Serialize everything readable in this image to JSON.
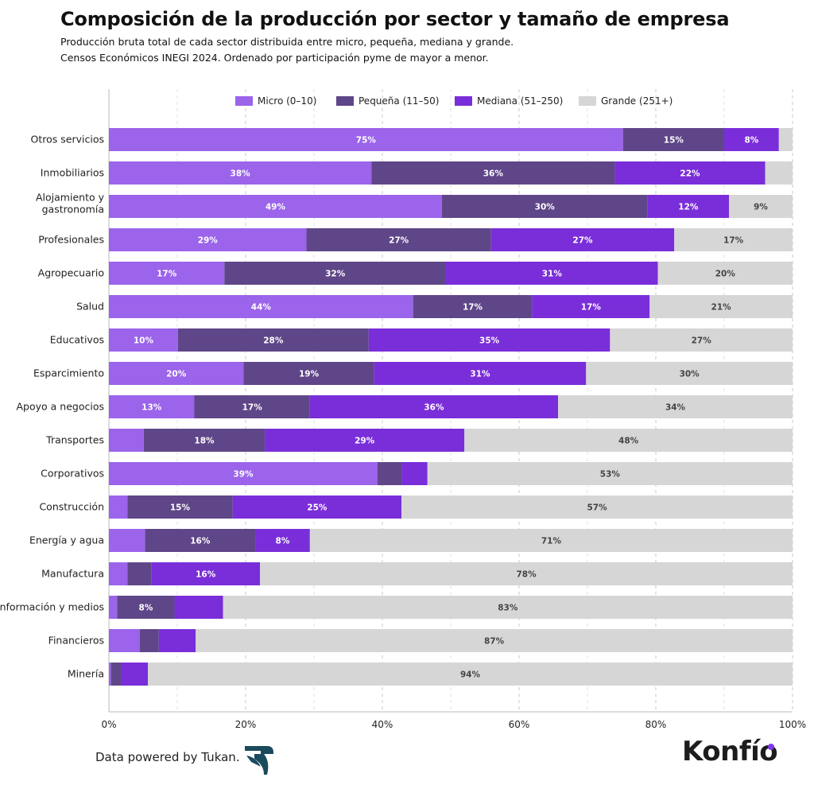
{
  "title": "Composición de la producción por sector y tamaño de empresa",
  "subtitle_line1": "Producción bruta total de cada sector distribuida entre micro, pequeña, mediana y grande.",
  "subtitle_line2": "Censos Económicos INEGI 2024. Ordenado por participación pyme de mayor a menor.",
  "footer": {
    "credit": "Data powered by Tukan.",
    "brand": "Konfío",
    "brand_dot_color": "#7c3aed",
    "tukan_logo_icon": "tukan-bird-logo-icon"
  },
  "colors": {
    "micro": "#9b64ea",
    "pequena": "#5f4688",
    "mediana": "#7a2ed9",
    "grande": "#d6d6d6",
    "label_light": "#ffffff",
    "label_dark": "#444444"
  },
  "chart_data": {
    "type": "bar",
    "orientation": "horizontal",
    "stacked": true,
    "x_ticks": [
      "0%",
      "20%",
      "40%",
      "60%",
      "80%",
      "100%"
    ],
    "xlim": [
      0,
      100
    ],
    "grid": true,
    "legend_position": "top",
    "categories": [
      "Otros servicios",
      "Inmobiliarios",
      "Alojamiento y gastronomía",
      "Profesionales",
      "Agropecuario",
      "Salud",
      "Educativos",
      "Esparcimiento",
      "Apoyo a negocios",
      "Transportes",
      "Corporativos",
      "Construcción",
      "Energía y agua",
      "Manufactura",
      "Información y medios",
      "Financieros",
      "Minería"
    ],
    "category_lines": [
      [
        "Otros servicios"
      ],
      [
        "Inmobiliarios"
      ],
      [
        "Alojamiento y",
        "gastronomía"
      ],
      [
        "Profesionales"
      ],
      [
        "Agropecuario"
      ],
      [
        "Salud"
      ],
      [
        "Educativos"
      ],
      [
        "Esparcimiento"
      ],
      [
        "Apoyo a negocios"
      ],
      [
        "Transportes"
      ],
      [
        "Corporativos"
      ],
      [
        "Construcción"
      ],
      [
        "Energía y agua"
      ],
      [
        "Manufactura"
      ],
      [
        "Información y medios"
      ],
      [
        "Financieros"
      ],
      [
        "Minería"
      ]
    ],
    "series": [
      {
        "name": "Micro (0–10)",
        "key": "micro",
        "values": [
          75.2,
          38.4,
          48.7,
          28.9,
          16.9,
          44.5,
          10.1,
          19.7,
          12.5,
          5.1,
          39.3,
          2.7,
          5.3,
          2.7,
          1.2,
          4.5,
          0.3
        ],
        "labels": [
          "75%",
          "38%",
          "49%",
          "29%",
          "17%",
          "44%",
          "10%",
          "20%",
          "13%",
          "",
          "39%",
          "",
          "",
          "",
          "",
          "",
          ""
        ]
      },
      {
        "name": "Pequeña (11–50)",
        "key": "pequena",
        "values": [
          14.8,
          35.6,
          30.1,
          27.0,
          32.4,
          17.4,
          27.9,
          19.1,
          16.9,
          17.7,
          3.5,
          15.4,
          16.1,
          3.5,
          8.4,
          2.8,
          1.5
        ],
        "labels": [
          "15%",
          "36%",
          "30%",
          "27%",
          "32%",
          "17%",
          "28%",
          "19%",
          "17%",
          "18%",
          "",
          "15%",
          "16%",
          "",
          "8%",
          "",
          ""
        ]
      },
      {
        "name": "Mediana (51–250)",
        "key": "mediana",
        "values": [
          8.0,
          22.0,
          11.9,
          26.8,
          31.0,
          17.2,
          35.3,
          31.0,
          36.3,
          29.2,
          3.8,
          24.7,
          8.0,
          15.9,
          7.1,
          5.4,
          3.9
        ],
        "labels": [
          "8%",
          "22%",
          "12%",
          "27%",
          "31%",
          "17%",
          "35%",
          "31%",
          "36%",
          "29%",
          "",
          "25%",
          "8%",
          "16%",
          "",
          "",
          ""
        ]
      },
      {
        "name": "Grande (251+)",
        "key": "grande",
        "values": [
          2.0,
          4.0,
          9.3,
          17.3,
          19.7,
          20.9,
          26.7,
          30.2,
          34.3,
          48.0,
          53.4,
          57.2,
          70.6,
          77.9,
          83.3,
          87.3,
          94.3
        ],
        "labels": [
          "",
          "",
          "9%",
          "17%",
          "20%",
          "21%",
          "27%",
          "30%",
          "34%",
          "48%",
          "53%",
          "57%",
          "71%",
          "78%",
          "83%",
          "87%",
          "94%"
        ]
      }
    ]
  }
}
